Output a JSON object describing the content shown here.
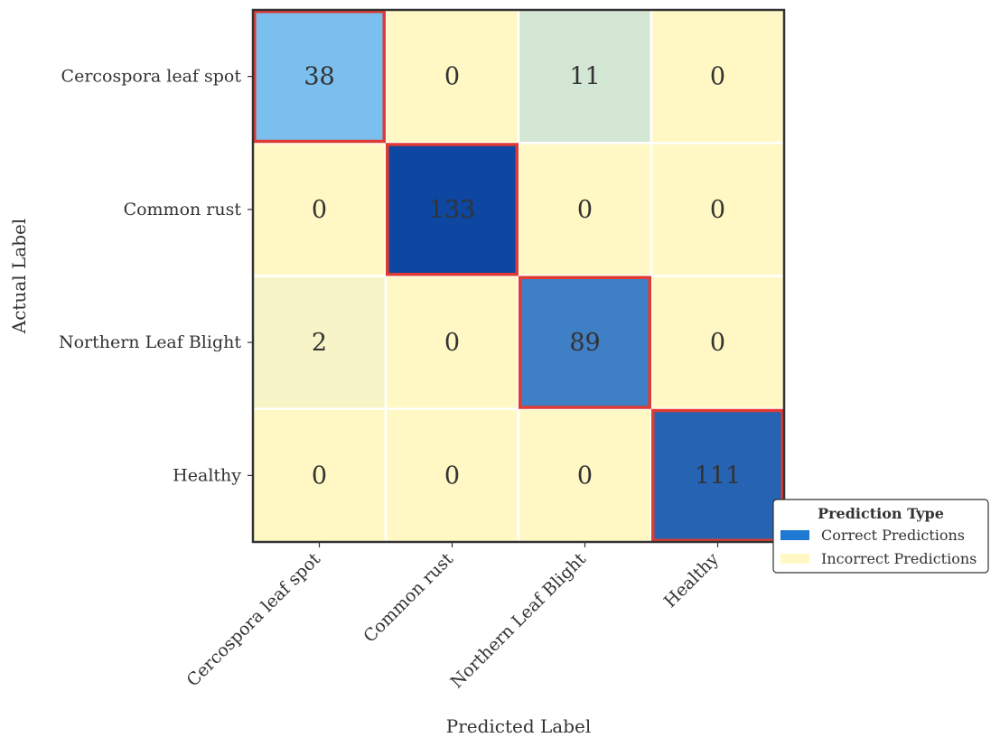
{
  "chart_data": {
    "type": "heatmap",
    "title": "",
    "xlabel": "Predicted Label",
    "ylabel": "Actual Label",
    "x_categories": [
      "Cercospora leaf spot",
      "Common rust",
      "Northern Leaf Blight",
      "Healthy"
    ],
    "y_categories": [
      "Cercospora leaf spot",
      "Common rust",
      "Northern Leaf Blight",
      "Healthy"
    ],
    "matrix": [
      [
        38,
        0,
        11,
        0
      ],
      [
        0,
        133,
        0,
        0
      ],
      [
        2,
        0,
        89,
        0
      ],
      [
        0,
        0,
        0,
        111
      ]
    ],
    "diagonal_highlight": true,
    "legend": {
      "title": "Prediction Type",
      "position": "right",
      "items": [
        {
          "label": "Correct Predictions",
          "color": "#1f78d1"
        },
        {
          "label": "Incorrect Predictions",
          "color": "#fff8c4"
        }
      ]
    }
  },
  "colors": {
    "diagonal_scale": [
      "#7abfee",
      "#0d47a1"
    ],
    "offdiagonal_scale": [
      "#fff8c4",
      "#d4e6d4"
    ],
    "highlight_border": "#e03b33",
    "grid_line": "#ffffff",
    "frame": "#333333"
  }
}
